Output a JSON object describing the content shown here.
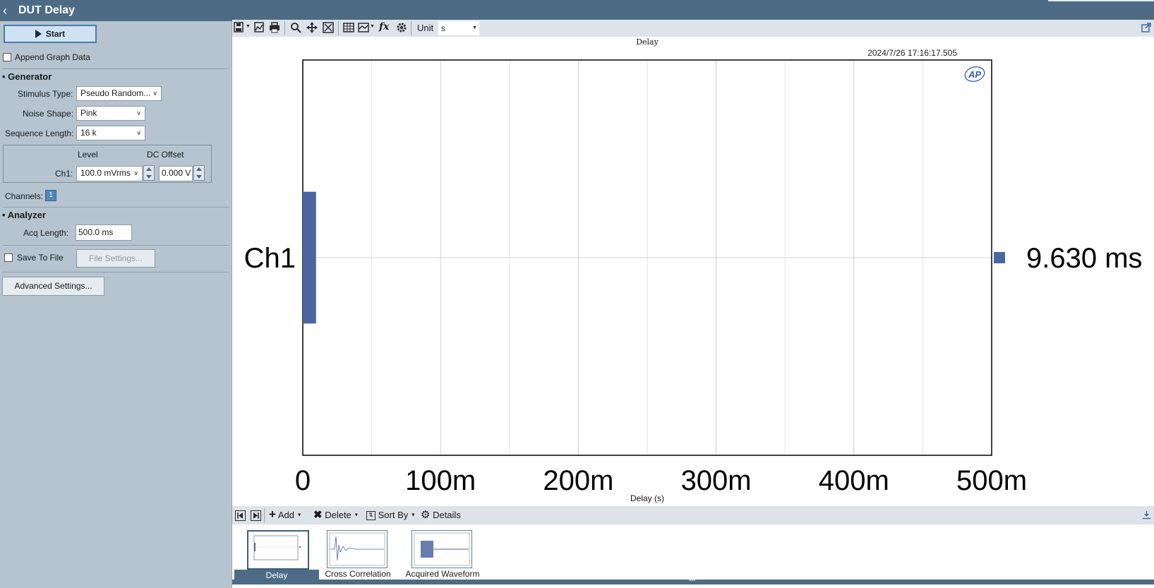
{
  "window": {
    "title": "DUT Delay"
  },
  "controls": {
    "start_label": "Start",
    "append_graph_data_label": "Append Graph Data",
    "generator_header": "Generator",
    "stimulus_type_label": "Stimulus Type:",
    "stimulus_type_value": "Pseudo Random...",
    "noise_shape_label": "Noise Shape:",
    "noise_shape_value": "Pink",
    "sequence_length_label": "Sequence Length:",
    "sequence_length_value": "16 k",
    "level_header": "Level",
    "dc_offset_header": "DC Offset",
    "ch1_label": "Ch1:",
    "ch1_level_value": "100.0 mVrms",
    "ch1_dc_offset_value": "0.000 V",
    "channels_label": "Channels:",
    "channels_badge": "1",
    "analyzer_header": "Analyzer",
    "acq_length_label": "Acq Length:",
    "acq_length_value": "500.0 ms",
    "save_to_file_label": "Save To File",
    "file_settings_label": "File Settings...",
    "advanced_settings_label": "Advanced Settings..."
  },
  "toolbar": {
    "unit_label": "Unit",
    "unit_value": "s",
    "icons": [
      "save-menu-icon",
      "copy-graph-icon",
      "print-icon",
      "zoom-icon",
      "pan-icon",
      "fit-icon",
      "table-icon",
      "graph-style-icon",
      "fx-icon",
      "settings-icon"
    ]
  },
  "chart_data": {
    "type": "bar",
    "orientation": "horizontal",
    "title": "Delay",
    "timestamp": "2024/7/26 17:16:17.505",
    "logo": "AP",
    "categories": [
      "Ch1"
    ],
    "values": [
      0.00963
    ],
    "value_label": "9.630 ms",
    "xlabel": "Delay (s)",
    "xlim": [
      0,
      0.5
    ],
    "xticks": [
      "0",
      "100m",
      "200m",
      "300m",
      "400m",
      "500m"
    ],
    "grid": true,
    "bar_color": "#4b66a0"
  },
  "bottom_toolbar": {
    "add_label": "Add",
    "delete_label": "Delete",
    "sort_by_label": "Sort By",
    "details_label": "Details"
  },
  "thumbnails": [
    {
      "label": "Delay",
      "selected": true
    },
    {
      "label": "Cross Correlation",
      "selected": false
    },
    {
      "label": "Acquired Waveform",
      "selected": false
    }
  ]
}
